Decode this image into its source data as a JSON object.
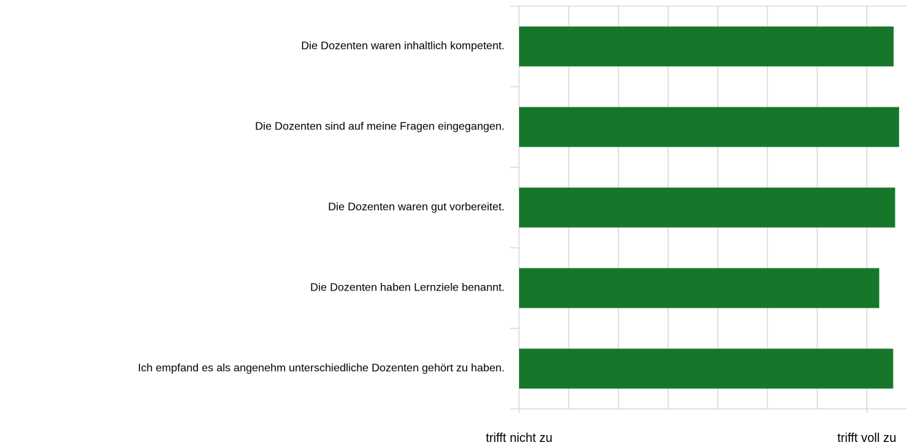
{
  "chart_data": {
    "type": "barh",
    "categories": [
      "Die Dozenten waren inhaltlich kompetent.",
      "Die Dozenten sind auf meine Fragen eingegangen.",
      "Die Dozenten waren gut vorbereitet.",
      "Die Dozenten haben Lernziele benannt.",
      "Ich empfand es als angenehm unterschiedliche Dozenten gehört zu haben."
    ],
    "values": [
      8.54,
      8.65,
      8.57,
      8.25,
      8.53
    ],
    "color": "#16772a",
    "xlim": [
      1,
      8.8
    ],
    "xticks": [
      {
        "value": 1,
        "label": "trifft nicht zu"
      },
      {
        "value": 8,
        "label": "trifft voll zu"
      }
    ],
    "xgrid": [
      1,
      2,
      3,
      4,
      5,
      6,
      7,
      8
    ],
    "grid": true
  }
}
